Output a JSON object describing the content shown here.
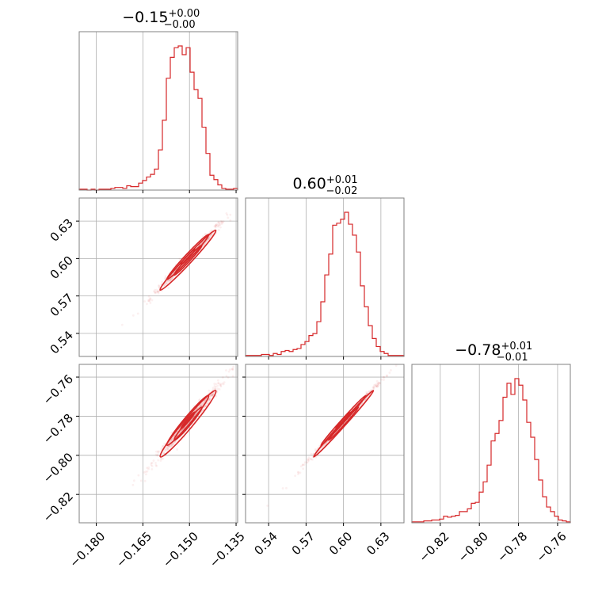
{
  "chart_data": {
    "type": "corner",
    "color": "#d62728",
    "grid": true,
    "parameters": [
      {
        "title_main": "−0.15",
        "title_plus": "+0.00",
        "title_minus": "−0.00",
        "range": [
          -0.1855,
          -0.1345
        ],
        "ticks": [
          -0.18,
          -0.165,
          -0.15,
          -0.135
        ],
        "tick_labels": [
          "−0.180",
          "−0.165",
          "−0.150",
          "−0.135"
        ],
        "hist_start": -0.1855,
        "hist_step": 0.001275,
        "hist_counts": [
          1,
          1,
          0,
          1,
          0,
          1,
          1,
          1,
          2,
          3,
          3,
          2,
          5,
          4,
          4,
          8,
          11,
          15,
          18,
          24,
          46,
          80,
          128,
          152,
          163,
          165,
          155,
          163,
          135,
          115,
          105,
          72,
          42,
          17,
          12,
          6,
          2,
          1,
          1,
          2
        ]
      },
      {
        "title_main": "0.60",
        "title_plus": "+0.01",
        "title_minus": "−0.02",
        "range": [
          0.5215,
          0.6485
        ],
        "ticks": [
          0.54,
          0.57,
          0.6,
          0.63
        ],
        "tick_labels": [
          "0.54",
          "0.57",
          "0.60",
          "0.63"
        ],
        "hist_start": 0.5215,
        "hist_step": 0.003175,
        "hist_counts": [
          1,
          1,
          1,
          1,
          2,
          2,
          1,
          3,
          2,
          5,
          6,
          5,
          7,
          8,
          12,
          15,
          21,
          23,
          35,
          55,
          82,
          103,
          132,
          134,
          138,
          145,
          133,
          122,
          105,
          71,
          50,
          31,
          18,
          10,
          5,
          3,
          1,
          1,
          1,
          1
        ]
      },
      {
        "title_main": "−0.78",
        "title_plus": "+0.01",
        "title_minus": "−0.01",
        "range": [
          -0.8345,
          -0.7535
        ],
        "ticks": [
          -0.82,
          -0.8,
          -0.78,
          -0.76
        ],
        "tick_labels": [
          "−0.82",
          "−0.80",
          "−0.78",
          "−0.76"
        ],
        "hist_start": -0.8345,
        "hist_step": 0.002025,
        "hist_counts": [
          1,
          1,
          1,
          2,
          2,
          3,
          3,
          4,
          7,
          6,
          7,
          8,
          12,
          12,
          15,
          21,
          22,
          33,
          44,
          62,
          88,
          96,
          110,
          135,
          150,
          138,
          155,
          148,
          132,
          108,
          92,
          68,
          46,
          28,
          17,
          12,
          7,
          3,
          2,
          1
        ]
      }
    ],
    "pairs": [
      {
        "x_param": 0,
        "y_param": 1,
        "x_range": [
          -0.1855,
          -0.1345
        ],
        "y_range": [
          0.5215,
          0.6485
        ],
        "y_ticks": [
          0.54,
          0.57,
          0.6,
          0.63
        ],
        "y_tick_labels": [
          "0.54",
          "0.57",
          "0.60",
          "0.63"
        ],
        "mean": [
          -0.1505,
          0.6
        ],
        "sd": [
          0.0045,
          0.012
        ],
        "rho": 0.985
      },
      {
        "x_param": 0,
        "y_param": 2,
        "x_range": [
          -0.1855,
          -0.1345
        ],
        "y_range": [
          -0.8345,
          -0.7535
        ],
        "y_ticks": [
          -0.82,
          -0.8,
          -0.78,
          -0.76
        ],
        "y_tick_labels": [
          "−0.82",
          "−0.80",
          "−0.78",
          "−0.76"
        ],
        "mean": [
          -0.1505,
          -0.783
        ],
        "sd": [
          0.0045,
          0.0085
        ],
        "rho": 0.975
      },
      {
        "x_param": 1,
        "y_param": 2,
        "x_range": [
          0.5215,
          0.6485
        ],
        "y_range": [
          -0.8345,
          -0.7535
        ],
        "y_ticks": [
          -0.82,
          -0.8,
          -0.78,
          -0.76
        ],
        "y_tick_labels": [],
        "mean": [
          0.6,
          -0.783
        ],
        "sd": [
          0.012,
          0.0085
        ],
        "rho": 0.995
      }
    ]
  }
}
